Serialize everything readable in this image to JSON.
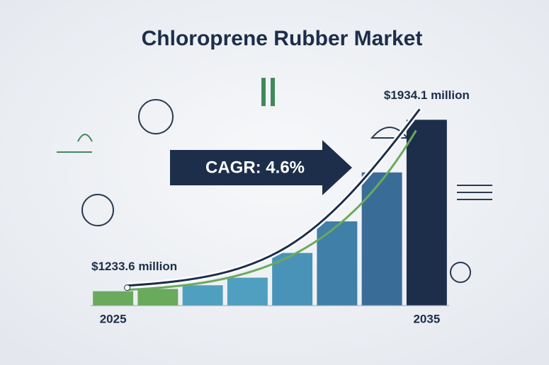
{
  "chart_data": {
    "type": "bar",
    "title": "Chloroprene Rubber Market",
    "annotation": "CAGR: 4.6%",
    "categories": [
      "2025",
      null,
      null,
      null,
      null,
      null,
      null,
      "2035"
    ],
    "values": [
      1233.6,
      1243,
      1258,
      1289,
      1390,
      1519,
      1719,
      1934.1
    ],
    "value_labels": [
      "$1233.6 million",
      null,
      null,
      null,
      null,
      null,
      null,
      "$1934.1 million"
    ],
    "colors": [
      "#6aaa5c",
      "#6aaa5c",
      "#4f9fc0",
      "#4f9fc0",
      "#4a93b8",
      "#3f7fa8",
      "#3a6c98",
      "#1c2e4a"
    ],
    "ylim": [
      1175,
      1990
    ]
  }
}
